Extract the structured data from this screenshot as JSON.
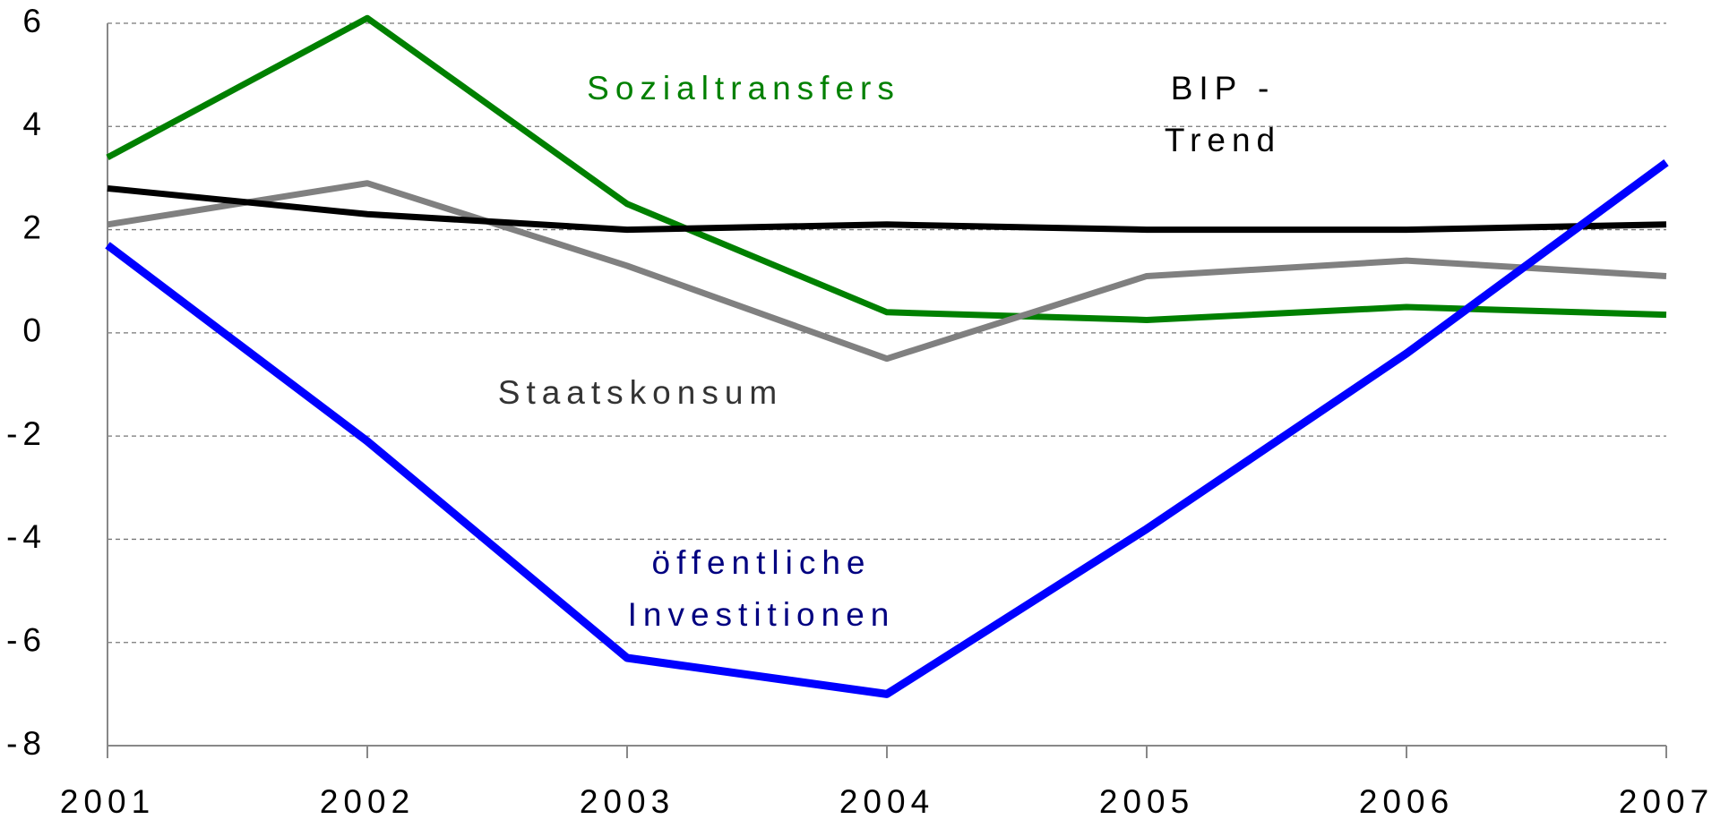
{
  "chart_data": {
    "type": "line",
    "x": [
      "2001",
      "2002",
      "2003",
      "2004",
      "2005",
      "2006",
      "2007"
    ],
    "series": [
      {
        "name": "Sozialtransfers",
        "color": "#008000",
        "values": [
          3.4,
          6.1,
          2.5,
          0.4,
          0.25,
          0.5,
          0.35
        ]
      },
      {
        "name": "Staatskonsum",
        "color": "#808080",
        "values": [
          2.1,
          2.9,
          1.3,
          -0.5,
          1.1,
          1.4,
          1.1
        ]
      },
      {
        "name": "BIP - Trend",
        "color": "#000000",
        "values": [
          2.8,
          2.3,
          2.0,
          2.1,
          2.0,
          2.0,
          2.1
        ]
      },
      {
        "name": "öffentliche Investitionen",
        "color": "#0000ff",
        "values": [
          1.7,
          -2.1,
          -6.3,
          -7.0,
          -3.8,
          -0.4,
          3.3
        ]
      }
    ],
    "label_colors": [
      "#008000",
      "#333333",
      "#000000",
      "#000080"
    ],
    "ylim": [
      -8,
      6
    ],
    "yticks": [
      -8,
      -6,
      -4,
      -2,
      0,
      2,
      4,
      6
    ],
    "grid": true
  }
}
